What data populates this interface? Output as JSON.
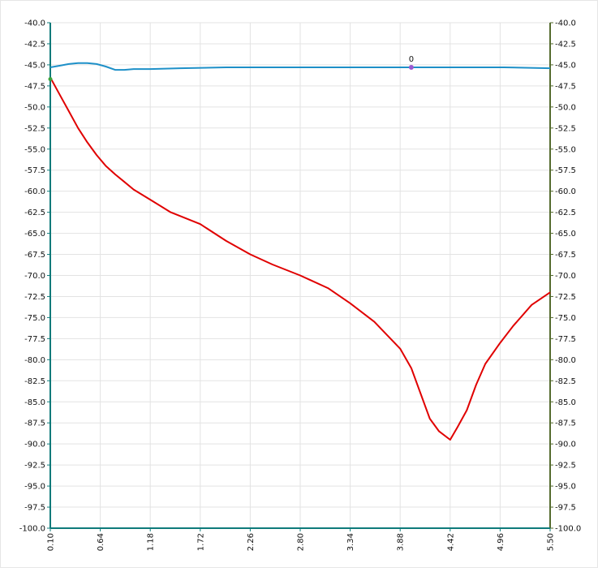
{
  "chart_data": {
    "type": "line",
    "x_ticks": [
      "0.10",
      "0.64",
      "1.18",
      "1.72",
      "2.26",
      "2.80",
      "3.34",
      "3.88",
      "4.42",
      "4.96",
      "5.50"
    ],
    "y_ticks": [
      "-40.0",
      "-42.5",
      "-45.0",
      "-47.5",
      "-50.0",
      "-52.5",
      "-55.0",
      "-57.5",
      "-60.0",
      "-62.5",
      "-65.0",
      "-67.5",
      "-70.0",
      "-72.5",
      "-75.0",
      "-77.5",
      "-80.0",
      "-82.5",
      "-85.0",
      "-87.5",
      "-90.0",
      "-92.5",
      "-95.0",
      "-97.5",
      "-100.0"
    ],
    "xlim": [
      0.1,
      5.5
    ],
    "ylim": [
      -100,
      -40
    ],
    "grid": true,
    "series": [
      {
        "color": "#1e90c8",
        "x": [
          0.1,
          0.2,
          0.3,
          0.4,
          0.5,
          0.6,
          0.7,
          0.8,
          0.9,
          1.0,
          1.18,
          1.5,
          2.0,
          2.5,
          3.0,
          3.5,
          4.0,
          4.5,
          5.0,
          5.5
        ],
        "y": [
          -45.3,
          -45.1,
          -44.9,
          -44.8,
          -44.8,
          -44.9,
          -45.2,
          -45.6,
          -45.6,
          -45.5,
          -45.5,
          -45.4,
          -45.3,
          -45.3,
          -45.3,
          -45.3,
          -45.3,
          -45.3,
          -45.3,
          -45.4
        ]
      },
      {
        "color": "#e00000",
        "x": [
          0.1,
          0.2,
          0.3,
          0.4,
          0.5,
          0.6,
          0.7,
          0.8,
          0.9,
          1.0,
          1.18,
          1.4,
          1.72,
          2.0,
          2.26,
          2.5,
          2.8,
          3.1,
          3.34,
          3.6,
          3.88,
          4.0,
          4.1,
          4.2,
          4.3,
          4.42,
          4.5,
          4.6,
          4.7,
          4.8,
          4.96,
          5.1,
          5.3,
          5.5
        ],
        "y": [
          -46.5,
          -48.5,
          -50.5,
          -52.5,
          -54.2,
          -55.7,
          -57.0,
          -58.0,
          -58.9,
          -59.8,
          -61.0,
          -62.5,
          -63.9,
          -65.9,
          -67.5,
          -68.7,
          -70.0,
          -71.5,
          -73.3,
          -75.5,
          -78.7,
          -81.0,
          -84.0,
          -87.0,
          -88.5,
          -89.5,
          -88.0,
          -86.0,
          -83.0,
          -80.5,
          -78.0,
          -76.0,
          -73.5,
          -72.0
        ]
      }
    ],
    "annotations": [
      {
        "text": "0",
        "x": 4.0,
        "y": -45.3,
        "color": "#9b59d0"
      }
    ]
  }
}
